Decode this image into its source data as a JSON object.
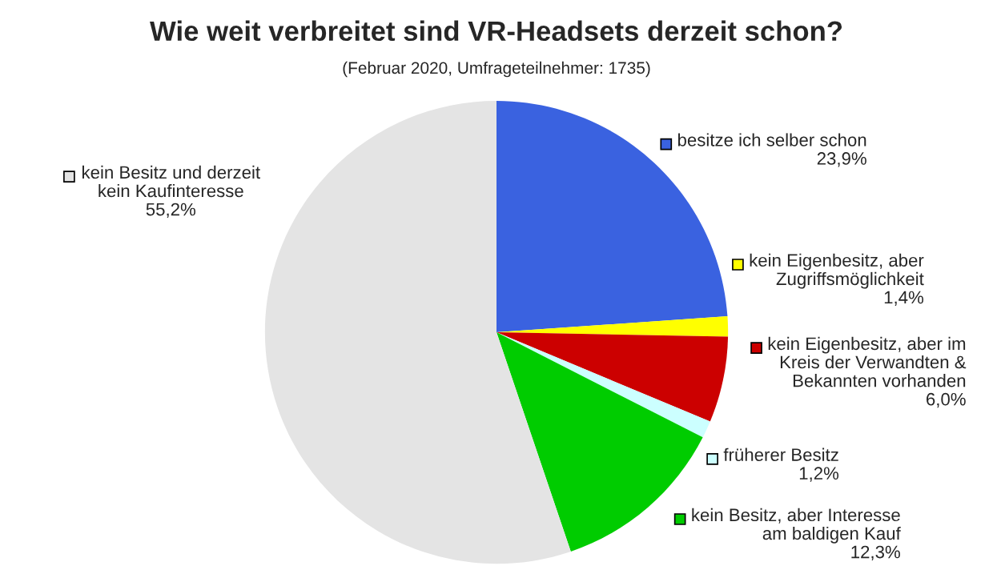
{
  "chart_data": {
    "type": "pie",
    "title": "Wie weit verbreitet sind VR-Headsets derzeit schon?",
    "subtitle": "(Februar 2020, Umfrageteilnehmer: 1735)",
    "categories": [
      "besitze ich selber schon",
      "kein Eigenbesitz, aber\nZugriffsmöglichkeit",
      "kein Eigenbesitz, aber im\nKreis der Verwandten &\nBekannten vorhanden",
      "früherer Besitz",
      "kein Besitz, aber Interesse\nam baldigen Kauf",
      "kein Besitz und derzeit\nkein Kaufinteresse"
    ],
    "values": [
      23.9,
      1.4,
      6.0,
      1.2,
      12.3,
      55.2
    ],
    "value_labels": [
      "23,9%",
      "1,4%",
      "6,0%",
      "1,2%",
      "12,3%",
      "55,2%"
    ],
    "colors": [
      "#3a62e0",
      "#ffff00",
      "#cc0000",
      "#ccffff",
      "#00cc00",
      "#e4e4e4"
    ],
    "legend": "right"
  }
}
